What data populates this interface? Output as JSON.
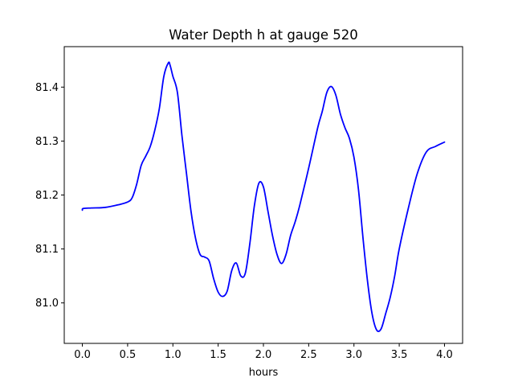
{
  "chart_data": {
    "type": "line",
    "title": "Water Depth h at gauge 520",
    "xlabel": "hours",
    "ylabel": "",
    "xlim": [
      -0.2,
      4.2
    ],
    "ylim": [
      80.925,
      81.475
    ],
    "xticks": [
      0.0,
      0.5,
      1.0,
      1.5,
      2.0,
      2.5,
      3.0,
      3.5,
      4.0
    ],
    "xtick_labels": [
      "0.0",
      "0.5",
      "1.0",
      "1.5",
      "2.0",
      "2.5",
      "3.0",
      "3.5",
      "4.0"
    ],
    "yticks": [
      81.0,
      81.1,
      81.2,
      81.3,
      81.4
    ],
    "ytick_labels": [
      "81.0",
      "81.1",
      "81.2",
      "81.3",
      "81.4"
    ],
    "grid": false,
    "series": [
      {
        "color": "#0000ff",
        "x": [
          0.0,
          0.01,
          0.1,
          0.25,
          0.4,
          0.5,
          0.55,
          0.6,
          0.65,
          0.7,
          0.75,
          0.8,
          0.85,
          0.9,
          0.95,
          0.97,
          1.0,
          1.05,
          1.1,
          1.15,
          1.2,
          1.25,
          1.3,
          1.35,
          1.4,
          1.45,
          1.5,
          1.55,
          1.6,
          1.65,
          1.7,
          1.75,
          1.8,
          1.85,
          1.9,
          1.95,
          2.0,
          2.05,
          2.1,
          2.15,
          2.2,
          2.25,
          2.3,
          2.35,
          2.4,
          2.5,
          2.6,
          2.65,
          2.7,
          2.75,
          2.8,
          2.85,
          2.9,
          2.95,
          3.0,
          3.05,
          3.1,
          3.15,
          3.2,
          3.25,
          3.3,
          3.35,
          3.4,
          3.45,
          3.5,
          3.6,
          3.7,
          3.8,
          3.9,
          4.0
        ],
        "y": [
          81.172,
          81.175,
          81.176,
          81.177,
          81.182,
          81.187,
          81.195,
          81.22,
          81.255,
          81.272,
          81.29,
          81.32,
          81.36,
          81.42,
          81.445,
          81.44,
          81.42,
          81.39,
          81.31,
          81.24,
          81.17,
          81.12,
          81.09,
          81.085,
          81.078,
          81.045,
          81.02,
          81.012,
          81.022,
          81.06,
          81.074,
          81.05,
          81.055,
          81.11,
          81.18,
          81.222,
          81.215,
          81.17,
          81.125,
          81.09,
          81.073,
          81.09,
          81.125,
          81.15,
          81.18,
          81.25,
          81.325,
          81.355,
          81.39,
          81.401,
          81.385,
          81.35,
          81.325,
          81.305,
          81.27,
          81.21,
          81.12,
          81.04,
          80.98,
          80.95,
          80.952,
          80.98,
          81.01,
          81.05,
          81.1,
          81.175,
          81.24,
          81.28,
          81.29,
          81.298
        ]
      }
    ]
  }
}
